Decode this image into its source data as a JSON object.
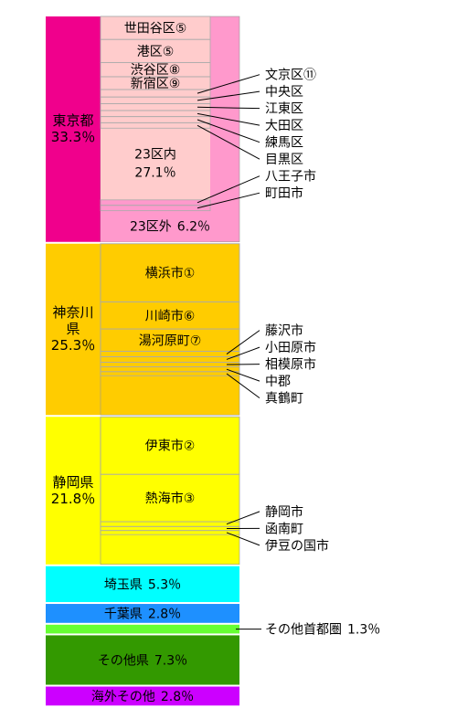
{
  "chart_data": {
    "type": "mosaic",
    "ylim": [
      0,
      100
    ],
    "segments": [
      {
        "name": "東京都",
        "value": 33.3,
        "value_label": "33.3％",
        "color": "#f0008c",
        "inner_color": "#ff99cc",
        "groups": [
          {
            "name": "23区内",
            "value": 27.1,
            "value_label": "27.1％",
            "color": "#ffcccc",
            "items": [
              {
                "name": "世田谷区⑤",
                "value": 3.4,
                "label_position": "inside"
              },
              {
                "name": "港区⑤",
                "value": 3.4,
                "label_position": "inside"
              },
              {
                "name": "渋谷区⑧",
                "value": 2.1,
                "label_position": "inside"
              },
              {
                "name": "新宿区⑨",
                "value": 1.9,
                "label_position": "inside"
              },
              {
                "name": "文京区⑪",
                "value": 1.1,
                "label_position": "outside"
              },
              {
                "name": "中央区",
                "value": 1.0,
                "label_position": "outside"
              },
              {
                "name": "江東区",
                "value": 1.0,
                "label_position": "outside"
              },
              {
                "name": "大田区",
                "value": 0.9,
                "label_position": "outside"
              },
              {
                "name": "練馬区",
                "value": 0.9,
                "label_position": "outside"
              },
              {
                "name": "目黒区",
                "value": 0.8,
                "label_position": "outside"
              }
            ]
          },
          {
            "name": "23区外",
            "value": 6.2,
            "value_label": "6.2％",
            "color": "#ff99cc",
            "items": [
              {
                "name": "八王子市",
                "value": 0.8,
                "label_position": "outside"
              },
              {
                "name": "町田市",
                "value": 0.8,
                "label_position": "outside"
              }
            ]
          }
        ]
      },
      {
        "name": "神奈川県",
        "value": 25.3,
        "value_label": "25.3％",
        "color": "#ffcc00",
        "items": [
          {
            "name": "横浜市①",
            "value": 8.6,
            "label_position": "inside"
          },
          {
            "name": "川崎市⑥",
            "value": 4.0,
            "label_position": "inside"
          },
          {
            "name": "湯河原町⑦",
            "value": 3.3,
            "label_position": "inside"
          },
          {
            "name": "藤沢市",
            "value": 0.8,
            "label_position": "outside"
          },
          {
            "name": "小田原市",
            "value": 0.8,
            "label_position": "outside"
          },
          {
            "name": "相模原市",
            "value": 0.7,
            "label_position": "outside"
          },
          {
            "name": "中郡",
            "value": 0.7,
            "label_position": "outside"
          },
          {
            "name": "真鶴町",
            "value": 0.6,
            "label_position": "outside"
          }
        ]
      },
      {
        "name": "静岡県",
        "value": 21.8,
        "value_label": "21.8％",
        "color": "#ffff00",
        "items": [
          {
            "name": "伊東市②",
            "value": 8.5,
            "label_position": "inside"
          },
          {
            "name": "熱海市③",
            "value": 7.0,
            "label_position": "inside"
          },
          {
            "name": "静岡市",
            "value": 0.7,
            "label_position": "outside"
          },
          {
            "name": "函南町",
            "value": 0.6,
            "label_position": "outside"
          },
          {
            "name": "伊豆の国市",
            "value": 0.6,
            "label_position": "outside"
          }
        ]
      },
      {
        "name": "埼玉県",
        "value": 5.3,
        "value_label": "5.3％",
        "color": "#00ffff"
      },
      {
        "name": "千葉県",
        "value": 2.8,
        "value_label": "2.8％",
        "color": "#1e90ff"
      },
      {
        "name": "その他首都圏",
        "value": 1.3,
        "value_label": "1.3％",
        "color": "#66ff33",
        "label_position": "outside"
      },
      {
        "name": "その他県",
        "value": 7.3,
        "value_label": "7.3％",
        "color": "#339900"
      },
      {
        "name": "海外その他",
        "value": 2.8,
        "value_label": "2.8％",
        "color": "#cc00ff"
      }
    ]
  }
}
